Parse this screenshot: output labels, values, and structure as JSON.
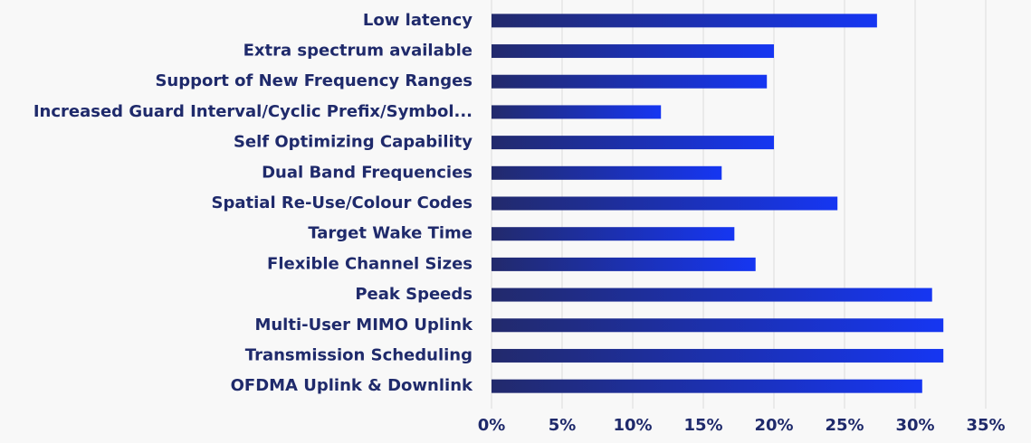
{
  "chart_data": {
    "type": "bar",
    "orientation": "horizontal",
    "categories": [
      "Low latency",
      "Extra spectrum available",
      "Support of New Frequency Ranges",
      "Increased Guard Interval/Cyclic Prefix/Symbol...",
      "Self Optimizing Capability",
      "Dual Band Frequencies",
      "Spatial Re-Use/Colour Codes",
      "Target Wake Time",
      "Flexible Channel Sizes",
      "Peak Speeds",
      "Multi-User MIMO Uplink",
      "Transmission Scheduling",
      "OFDMA Uplink & Downlink"
    ],
    "values": [
      27.3,
      20,
      19.5,
      12,
      20,
      16.3,
      24.5,
      17.2,
      18.7,
      31.2,
      32,
      32,
      30.5
    ],
    "colors": [
      "#222a6c",
      "#1636f2"
    ],
    "xlim": [
      0,
      35
    ],
    "xticks": [
      {
        "value": 0,
        "label": "0%"
      },
      {
        "value": 5,
        "label": "5%"
      },
      {
        "value": 10,
        "label": "10%"
      },
      {
        "value": 15,
        "label": "15%"
      },
      {
        "value": 20,
        "label": "20%"
      },
      {
        "value": 25,
        "label": "25%"
      },
      {
        "value": 30,
        "label": "30%"
      },
      {
        "value": 35,
        "label": "35%"
      }
    ],
    "grid": true
  }
}
